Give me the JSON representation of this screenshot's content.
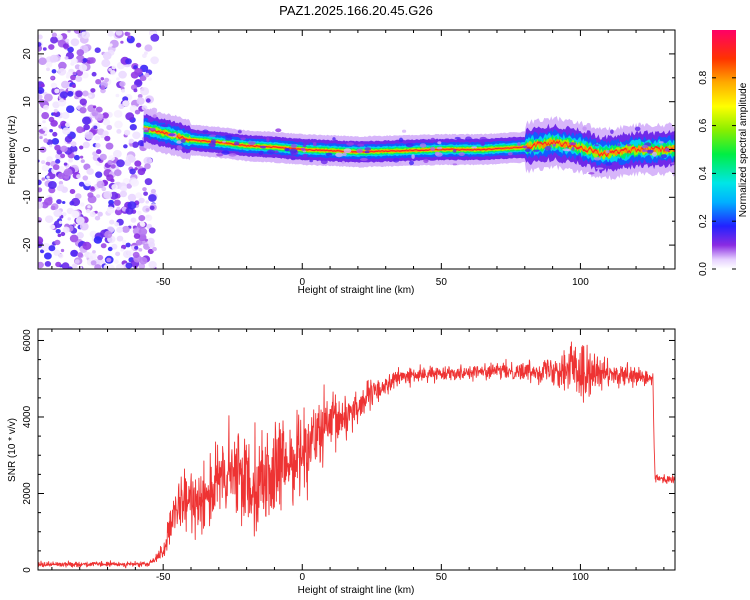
{
  "title": "PAZ1.2025.166.20.45.G26",
  "chart_data": [
    {
      "type": "heatmap",
      "xlabel": "Height of straight line (km)",
      "ylabel": "Frequency (Hz)",
      "xlim": [
        -95,
        134
      ],
      "ylim": [
        -25,
        25
      ],
      "x_ticks": [
        -50,
        0,
        50,
        100
      ],
      "y_ticks": [
        -20,
        -10,
        0,
        10,
        20
      ],
      "colorbar": {
        "label": "Normalized spectral amplitude",
        "range": [
          0,
          1
        ],
        "ticks": [
          "0.0",
          "0.2",
          "0.4",
          "0.6",
          "0.8"
        ]
      },
      "noise_region_x": [
        -95,
        -53
      ],
      "ridge": [
        {
          "x": -57,
          "f": 4.5
        },
        {
          "x": -50,
          "f": 3.5
        },
        {
          "x": -40,
          "f": 2.0
        },
        {
          "x": -30,
          "f": 1.5
        },
        {
          "x": -20,
          "f": 0.8
        },
        {
          "x": -10,
          "f": 0.5
        },
        {
          "x": 0,
          "f": 0.0
        },
        {
          "x": 20,
          "f": -0.5
        },
        {
          "x": 50,
          "f": 0.0
        },
        {
          "x": 65,
          "f": 0.0
        },
        {
          "x": 80,
          "f": 0.5
        },
        {
          "x": 90,
          "f": 1.5
        },
        {
          "x": 100,
          "f": 0.5
        },
        {
          "x": 108,
          "f": -1.0
        },
        {
          "x": 120,
          "f": 0.0
        },
        {
          "x": 134,
          "f": 0.0
        }
      ]
    },
    {
      "type": "line",
      "xlabel": "Height of straight line (km)",
      "ylabel": "SNR (10 * v/v)",
      "xlim": [
        -95,
        134
      ],
      "ylim": [
        0,
        6300
      ],
      "x_ticks": [
        -50,
        0,
        50,
        100
      ],
      "y_ticks": [
        0,
        2000,
        4000,
        6000
      ],
      "color": "#ee3333",
      "profile": [
        {
          "x": -95,
          "snr": 150,
          "noise": 60
        },
        {
          "x": -55,
          "snr": 150,
          "noise": 60
        },
        {
          "x": -50,
          "snr": 500,
          "noise": 200
        },
        {
          "x": -45,
          "snr": 1600,
          "noise": 600
        },
        {
          "x": -35,
          "snr": 2000,
          "noise": 900
        },
        {
          "x": -25,
          "snr": 2500,
          "noise": 1100
        },
        {
          "x": -15,
          "snr": 2300,
          "noise": 1200
        },
        {
          "x": -5,
          "snr": 2800,
          "noise": 1000
        },
        {
          "x": 5,
          "snr": 3500,
          "noise": 900
        },
        {
          "x": 15,
          "snr": 4000,
          "noise": 600
        },
        {
          "x": 25,
          "snr": 4600,
          "noise": 300
        },
        {
          "x": 35,
          "snr": 5050,
          "noise": 200
        },
        {
          "x": 50,
          "snr": 5150,
          "noise": 150
        },
        {
          "x": 70,
          "snr": 5200,
          "noise": 180
        },
        {
          "x": 85,
          "snr": 5200,
          "noise": 250
        },
        {
          "x": 95,
          "snr": 5300,
          "noise": 500
        },
        {
          "x": 100,
          "snr": 5200,
          "noise": 700
        },
        {
          "x": 110,
          "snr": 5100,
          "noise": 300
        },
        {
          "x": 126,
          "snr": 5000,
          "noise": 200
        },
        {
          "x": 126.8,
          "snr": 2400,
          "noise": 100
        },
        {
          "x": 134,
          "snr": 2350,
          "noise": 100
        }
      ]
    }
  ]
}
